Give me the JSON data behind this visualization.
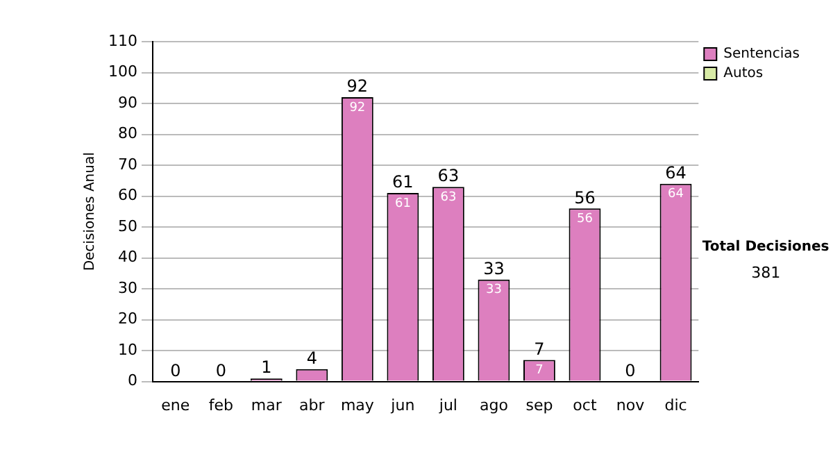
{
  "chart_data": {
    "type": "bar",
    "ylabel": "Decisiones Anual",
    "categories": [
      "ene",
      "feb",
      "mar",
      "abr",
      "may",
      "jun",
      "jul",
      "ago",
      "sep",
      "oct",
      "nov",
      "dic"
    ],
    "series": [
      {
        "name": "Sentencias",
        "color": "#dd7fbf",
        "values": [
          0,
          0,
          1,
          4,
          92,
          61,
          63,
          33,
          7,
          56,
          0,
          64
        ],
        "value_labels": [
          null,
          null,
          null,
          null,
          "92",
          "61",
          "63",
          "33",
          "7",
          "56",
          null,
          "64"
        ]
      },
      {
        "name": "Autos",
        "color": "#d8eba6",
        "values": [
          0,
          0,
          0,
          0,
          0,
          0,
          0,
          0,
          0,
          0,
          0,
          0
        ]
      }
    ],
    "stacked": true,
    "totals": [
      "0",
      "0",
      "1",
      "4",
      "92",
      "61",
      "63",
      "33",
      "7",
      "56",
      "0",
      "64"
    ],
    "ylim": [
      0,
      110
    ],
    "yticks": [
      0,
      10,
      20,
      30,
      40,
      50,
      60,
      70,
      80,
      90,
      100,
      110
    ],
    "grid": "y",
    "legend": "right",
    "annotations": [
      "Total Decisiones",
      "381"
    ]
  }
}
